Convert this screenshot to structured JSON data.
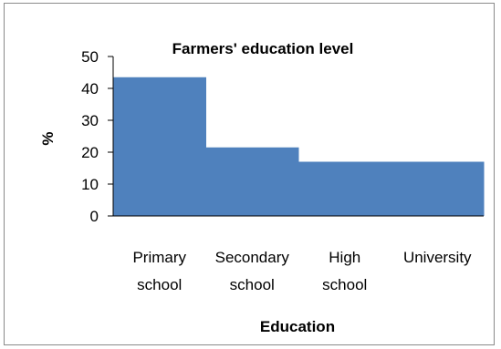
{
  "chart_data": {
    "type": "bar",
    "title": "Farmers' education level",
    "xlabel": "Education",
    "ylabel": "%",
    "categories": [
      [
        "Primary",
        "school"
      ],
      [
        "Secondary",
        "school"
      ],
      [
        "High",
        "school"
      ],
      [
        "University"
      ]
    ],
    "values": [
      43.5,
      21.5,
      17,
      17
    ],
    "ylim": [
      0,
      50
    ],
    "yticks": [
      0,
      10,
      20,
      30,
      40,
      50
    ],
    "grid": false,
    "legend": "none",
    "bar_color": "#4f81bd"
  }
}
